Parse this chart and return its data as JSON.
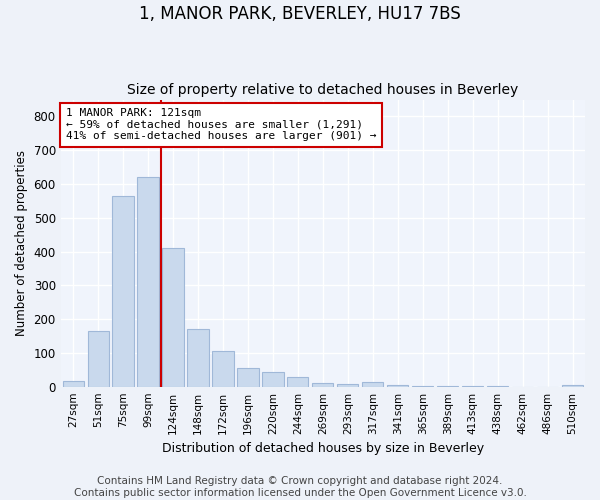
{
  "title": "1, MANOR PARK, BEVERLEY, HU17 7BS",
  "subtitle": "Size of property relative to detached houses in Beverley",
  "xlabel": "Distribution of detached houses by size in Beverley",
  "ylabel": "Number of detached properties",
  "bin_labels": [
    "27sqm",
    "51sqm",
    "75sqm",
    "99sqm",
    "124sqm",
    "148sqm",
    "172sqm",
    "196sqm",
    "220sqm",
    "244sqm",
    "269sqm",
    "293sqm",
    "317sqm",
    "341sqm",
    "365sqm",
    "389sqm",
    "413sqm",
    "438sqm",
    "462sqm",
    "486sqm",
    "510sqm"
  ],
  "bar_heights": [
    17,
    165,
    565,
    620,
    410,
    170,
    105,
    55,
    42,
    30,
    10,
    8,
    14,
    5,
    3,
    2,
    2,
    1,
    0,
    0,
    5
  ],
  "bar_color": "#c9d9ed",
  "bar_edge_color": "#a0b8d8",
  "vline_x": 3.5,
  "vline_color": "#cc0000",
  "annotation_text": "1 MANOR PARK: 121sqm\n← 59% of detached houses are smaller (1,291)\n41% of semi-detached houses are larger (901) →",
  "annotation_box_color": "#ffffff",
  "annotation_box_edge": "#cc0000",
  "ylim": [
    0,
    850
  ],
  "yticks": [
    0,
    100,
    200,
    300,
    400,
    500,
    600,
    700,
    800
  ],
  "footer_text": "Contains HM Land Registry data © Crown copyright and database right 2024.\nContains public sector information licensed under the Open Government Licence v3.0.",
  "bg_color": "#eef2f9",
  "plot_bg_color": "#f0f4fc",
  "grid_color": "#ffffff",
  "title_fontsize": 12,
  "subtitle_fontsize": 10,
  "footer_fontsize": 7.5
}
